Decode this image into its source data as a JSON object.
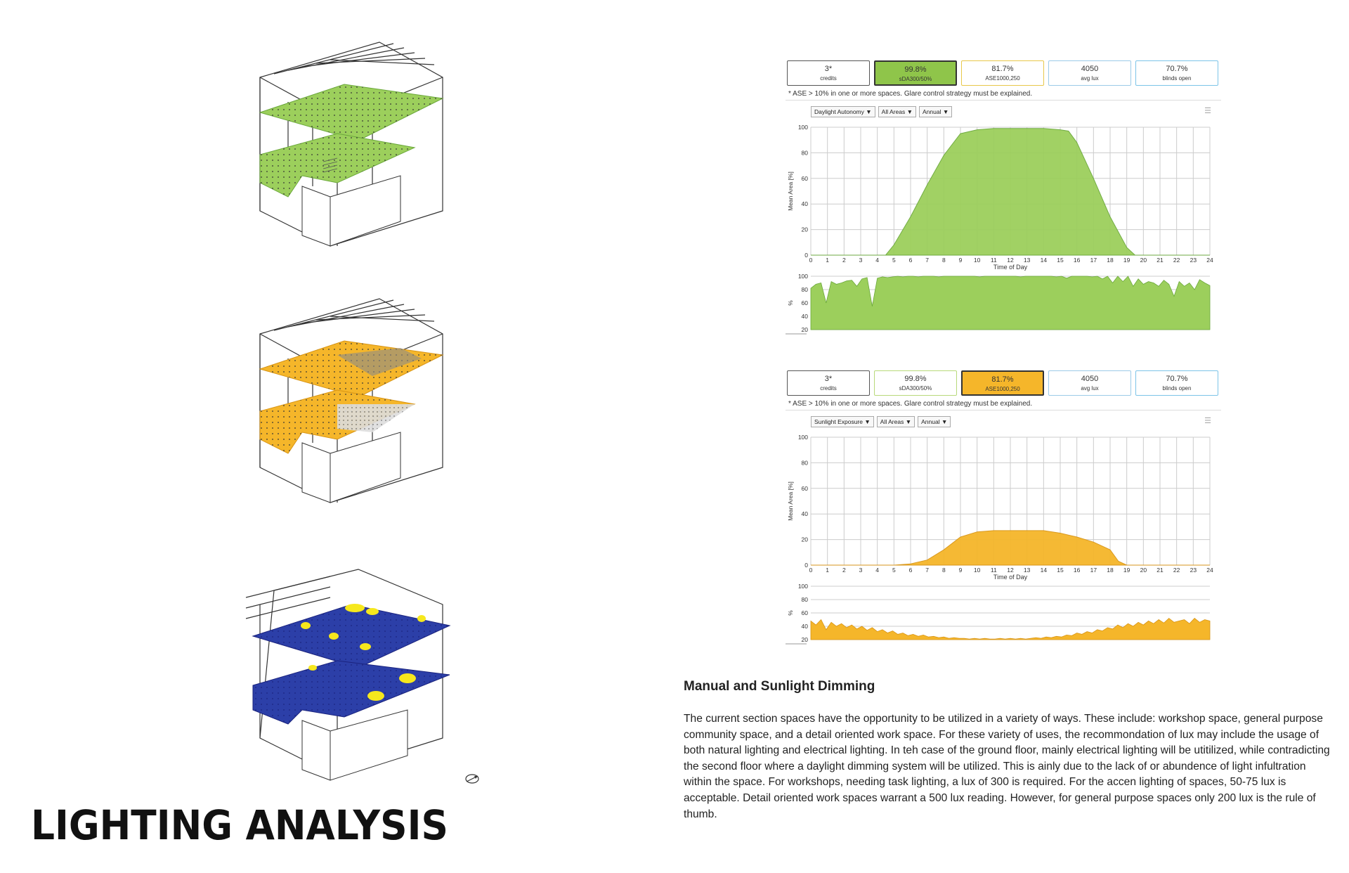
{
  "colors": {
    "green_fill": "#9ccf5c",
    "green_stroke": "#6aa83a",
    "orange_fill": "#f5b62a",
    "orange_stroke": "#d89414",
    "blue_fill": "#2c3fa8",
    "yellow_spot": "#f6e81d",
    "hatch": "#777777"
  },
  "title": "LIGHTING ANALYSIS",
  "panels": [
    {
      "metrics": [
        {
          "value": "3*",
          "label": "credits",
          "style": "plain"
        },
        {
          "value": "99.8%",
          "label": "sDA300/50%",
          "style": "green-active"
        },
        {
          "value": "81.7%",
          "label": "ASE1000,250",
          "style": "yellow-outline"
        },
        {
          "value": "4050",
          "label": "avg lux",
          "style": "light-blue"
        },
        {
          "value": "70.7%",
          "label": "blinds open",
          "style": "light-blue"
        }
      ],
      "note": "* ASE > 10% in one or more spaces. Glare control strategy must be explained.",
      "toolbar": [
        "Daylight Autonomy",
        "All Areas",
        "Annual"
      ],
      "menu_icon": "hamburger-menu-icon"
    },
    {
      "metrics": [
        {
          "value": "3*",
          "label": "credits",
          "style": "plain"
        },
        {
          "value": "99.8%",
          "label": "sDA300/50%",
          "style": "green-outline"
        },
        {
          "value": "81.7%",
          "label": "ASE1000,250",
          "style": "orange-active"
        },
        {
          "value": "4050",
          "label": "avg lux",
          "style": "light-blue"
        },
        {
          "value": "70.7%",
          "label": "blinds open",
          "style": "light-blue"
        }
      ],
      "note": "* ASE > 10% in one or more spaces. Glare control strategy must be explained.",
      "toolbar": [
        "Sunlight Exposure",
        "All Areas",
        "Annual"
      ],
      "menu_icon": "hamburger-menu-icon"
    }
  ],
  "chart_data": [
    {
      "type": "area",
      "xlabel": "Time of Day",
      "ylabel": "Mean Area [%]",
      "xlim": [
        0,
        24
      ],
      "ylim": [
        0,
        100
      ],
      "x_ticks": [
        0,
        1,
        2,
        3,
        4,
        5,
        6,
        7,
        8,
        9,
        10,
        11,
        12,
        13,
        14,
        15,
        16,
        17,
        18,
        19,
        20,
        21,
        22,
        23,
        24
      ],
      "y_ticks": [
        0,
        20,
        40,
        60,
        80,
        100
      ],
      "grid": true,
      "color": "green",
      "x": [
        0,
        4.5,
        5,
        6,
        7,
        8,
        9,
        10,
        11,
        12,
        13,
        14,
        15,
        15.5,
        16,
        17,
        18,
        19,
        19.5,
        24
      ],
      "values": [
        0,
        0,
        8,
        30,
        55,
        78,
        95,
        98,
        99,
        99,
        99,
        99,
        98,
        97,
        88,
        60,
        30,
        6,
        0,
        0
      ],
      "annual": {
        "type": "area",
        "ylabel": "%",
        "ylim": [
          20,
          100
        ],
        "y_ticks": [
          20,
          40,
          60,
          80,
          100
        ],
        "values": [
          82,
          88,
          90,
          60,
          92,
          88,
          90,
          93,
          94,
          85,
          96,
          98,
          55,
          97,
          99,
          98,
          99,
          100,
          99,
          100,
          100,
          99,
          100,
          100,
          100,
          99,
          100,
          100,
          100,
          100,
          100,
          100,
          100,
          99,
          100,
          100,
          100,
          100,
          100,
          100,
          100,
          99,
          100,
          100,
          100,
          100,
          100,
          100,
          99,
          100,
          97,
          100,
          100,
          100,
          100,
          99,
          100,
          96,
          100,
          90,
          100,
          92,
          100,
          85,
          96,
          88,
          92,
          90,
          85,
          94,
          88,
          70,
          92,
          85,
          90,
          80,
          95,
          90,
          86
        ]
      }
    },
    {
      "type": "area",
      "xlabel": "Time of Day",
      "ylabel": "Mean Area [%]",
      "xlim": [
        0,
        24
      ],
      "ylim": [
        0,
        100
      ],
      "x_ticks": [
        0,
        1,
        2,
        3,
        4,
        5,
        6,
        7,
        8,
        9,
        10,
        11,
        12,
        13,
        14,
        15,
        16,
        17,
        18,
        19,
        20,
        21,
        22,
        23,
        24
      ],
      "y_ticks": [
        0,
        20,
        40,
        60,
        80,
        100
      ],
      "grid": true,
      "color": "orange",
      "x": [
        0,
        5,
        6,
        7,
        8,
        9,
        10,
        11,
        12,
        13,
        14,
        15,
        16,
        17,
        18,
        18.5,
        19,
        24
      ],
      "values": [
        0,
        0,
        1,
        4,
        12,
        22,
        26,
        27,
        27,
        27,
        27,
        25,
        22,
        18,
        12,
        3,
        0,
        0
      ],
      "annual": {
        "type": "area",
        "ylabel": "%",
        "ylim": [
          20,
          100
        ],
        "y_ticks": [
          20,
          40,
          60,
          80,
          100
        ],
        "values": [
          48,
          42,
          50,
          35,
          46,
          40,
          44,
          38,
          42,
          36,
          40,
          34,
          38,
          32,
          35,
          30,
          33,
          28,
          30,
          26,
          28,
          25,
          27,
          24,
          25,
          23,
          24,
          22,
          23,
          22,
          22,
          21,
          22,
          21,
          22,
          21,
          21,
          22,
          21,
          22,
          21,
          22,
          21,
          22,
          23,
          22,
          24,
          23,
          25,
          24,
          27,
          26,
          30,
          28,
          32,
          30,
          35,
          33,
          38,
          36,
          42,
          38,
          44,
          40,
          46,
          42,
          48,
          44,
          50,
          45,
          52,
          46,
          48,
          50,
          44,
          52,
          46,
          50,
          48
        ]
      }
    }
  ],
  "section": {
    "heading": "Manual and Sunlight Dimming",
    "paragraph": "The current section spaces have the opportunity to be utilized in a variety of ways. These include: workshop space, general purpose community space, and a detail oriented work space. For these variety of uses, the recommondation of lux may include the usage of both natural lighting and electrical lighting. In teh case of the ground floor, mainly electrical lighting will be utitilized, while contradicting the second floor where a daylight dimming system will be utilized. This is ainly due to the lack of or abundence of light infultration within the space. For workshops, needing task lighting, a lux of 300 is required. For the accen lighting of spaces, 50-75 lux is acceptable. Detail oriented work spaces warrant a 500 lux reading. However, for general purpose spaces only 200 lux is the rule of thumb."
  },
  "icons": {
    "compass": "north-arrow-icon",
    "dropdown": "dropdown-caret-icon"
  }
}
